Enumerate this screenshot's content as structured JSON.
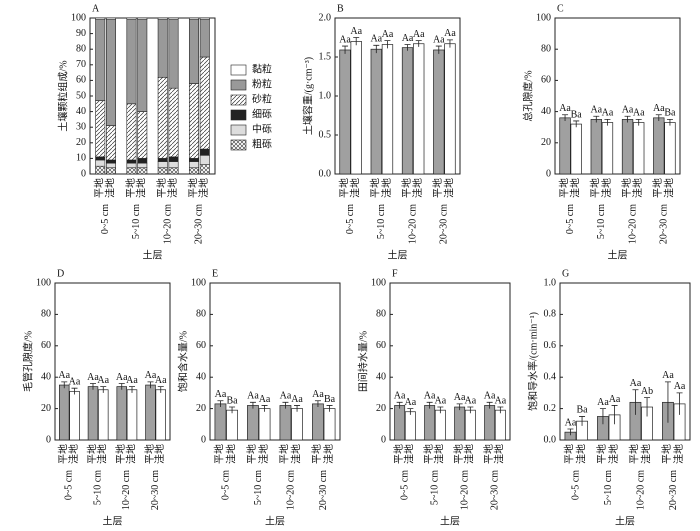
{
  "chart_data": [
    {
      "type": "stacked_bar",
      "panel": "A",
      "ylabel": "土壤颗粒组成/%",
      "xlabel": "土层",
      "categories": [
        "平地",
        "洼地",
        "平地",
        "洼地",
        "平地",
        "洼地",
        "平地",
        "洼地"
      ],
      "groups": [
        "0~5 cm",
        "5~10 cm",
        "10~20 cm",
        "20~30 cm"
      ],
      "ylim": [
        0,
        100
      ],
      "yticks": [
        0,
        10,
        20,
        30,
        40,
        50,
        60,
        70,
        80,
        90,
        100
      ],
      "series": [
        {
          "name": "粗砾",
          "color": "#ffffff",
          "hatch": "cross",
          "values": [
            5,
            4,
            4,
            4,
            4,
            4,
            4,
            6
          ]
        },
        {
          "name": "中砾",
          "color": "#dddddd",
          "values": [
            4,
            3,
            3,
            3,
            4,
            4,
            4,
            6
          ]
        },
        {
          "name": "细砾",
          "color": "#222222",
          "values": [
            2,
            2,
            2,
            3,
            2,
            3,
            2,
            4
          ]
        },
        {
          "name": "砂粒",
          "color": "#ffffff",
          "hatch": "diagonal",
          "values": [
            36,
            22,
            36,
            30,
            52,
            44,
            48,
            59
          ]
        },
        {
          "name": "粉粒",
          "color": "#999999",
          "values": [
            52,
            68,
            54,
            59,
            37,
            44,
            41,
            24
          ]
        },
        {
          "name": "黏粒",
          "color": "#ffffff",
          "values": [
            1,
            1,
            1,
            1,
            1,
            1,
            1,
            1
          ]
        }
      ]
    },
    {
      "type": "bar",
      "panel": "B",
      "ylabel": "土壤容重/(g·cm⁻³)",
      "xlabel": "土层",
      "categories": [
        "0~5 cm",
        "5~10 cm",
        "10~20 cm",
        "20~30 cm"
      ],
      "ylim": [
        0,
        2
      ],
      "yticks": [
        {
          "value": 0,
          "label": "0.0"
        },
        0.5,
        {
          "value": 1,
          "label": "1.0"
        },
        1.5,
        {
          "value": 2,
          "label": "2.0"
        }
      ],
      "series": [
        {
          "name": "平地",
          "color": "#a0a0a0",
          "values": [
            1.59,
            1.6,
            1.62,
            1.59
          ],
          "errors": [
            0.05,
            0.05,
            0.04,
            0.05
          ],
          "letters": [
            "Aa",
            "Aa",
            "Aa",
            "Aa"
          ]
        },
        {
          "name": "洼地",
          "color": "#ffffff",
          "values": [
            1.7,
            1.66,
            1.67,
            1.67
          ],
          "errors": [
            0.05,
            0.05,
            0.04,
            0.05
          ],
          "letters": [
            "Aa",
            "Aa",
            "Aa",
            "Aa"
          ]
        }
      ]
    },
    {
      "type": "bar",
      "panel": "C",
      "ylabel": "总孔隙度/%",
      "xlabel": "土层",
      "categories": [
        "0~5 cm",
        "5~10 cm",
        "10~20 cm",
        "20~30 cm"
      ],
      "ylim": [
        0,
        100
      ],
      "yticks": [
        0,
        20,
        40,
        60,
        80,
        100
      ],
      "series": [
        {
          "name": "平地",
          "color": "#a0a0a0",
          "values": [
            36,
            35,
            35,
            36
          ],
          "errors": [
            2,
            2,
            2,
            2
          ],
          "letters": [
            "Aa",
            "Aa",
            "Aa",
            "Aa"
          ]
        },
        {
          "name": "洼地",
          "color": "#ffffff",
          "values": [
            32,
            33,
            33,
            33
          ],
          "errors": [
            2,
            2,
            2,
            2
          ],
          "letters": [
            "Ba",
            "Aa",
            "Aa",
            "Ba"
          ]
        }
      ]
    },
    {
      "type": "bar",
      "panel": "D",
      "ylabel": "毛管孔隙度/%",
      "xlabel": "土层",
      "categories": [
        "0~5 cm",
        "5~10 cm",
        "10~20 cm",
        "20~30 cm"
      ],
      "ylim": [
        0,
        100
      ],
      "yticks": [
        0,
        20,
        40,
        60,
        80,
        100
      ],
      "series": [
        {
          "name": "平地",
          "color": "#a0a0a0",
          "values": [
            35,
            34,
            34,
            35
          ],
          "errors": [
            2,
            2,
            2,
            2
          ],
          "letters": [
            "Aa",
            "Aa",
            "Aa",
            "Aa"
          ]
        },
        {
          "name": "洼地",
          "color": "#ffffff",
          "values": [
            31,
            32,
            32,
            32
          ],
          "errors": [
            2,
            2,
            2,
            2
          ],
          "letters": [
            "Aa",
            "Aa",
            "Aa",
            "Aa"
          ]
        }
      ]
    },
    {
      "type": "bar",
      "panel": "E",
      "ylabel": "饱和含水量/%",
      "xlabel": "土层",
      "categories": [
        "0~5 cm",
        "5~10 cm",
        "10~20 cm",
        "20~30 cm"
      ],
      "ylim": [
        0,
        100
      ],
      "yticks": [
        0,
        20,
        40,
        60,
        80,
        100
      ],
      "series": [
        {
          "name": "平地",
          "color": "#a0a0a0",
          "values": [
            23,
            22,
            22,
            23
          ],
          "errors": [
            2,
            2,
            2,
            2
          ],
          "letters": [
            "Aa",
            "Aa",
            "Aa",
            "Aa"
          ]
        },
        {
          "name": "洼地",
          "color": "#ffffff",
          "values": [
            19,
            20,
            20,
            20
          ],
          "errors": [
            2,
            2,
            2,
            2
          ],
          "letters": [
            "Ba",
            "Aa",
            "Aa",
            "Ba"
          ]
        }
      ]
    },
    {
      "type": "bar",
      "panel": "F",
      "ylabel": "田间持水量/%",
      "xlabel": "土层",
      "categories": [
        "0~5 cm",
        "5~10 cm",
        "10~20 cm",
        "20~30 cm"
      ],
      "ylim": [
        0,
        100
      ],
      "yticks": [
        0,
        20,
        40,
        60,
        80,
        100
      ],
      "series": [
        {
          "name": "平地",
          "color": "#a0a0a0",
          "values": [
            22,
            22,
            21,
            22
          ],
          "errors": [
            2,
            2,
            2,
            2
          ],
          "letters": [
            "Aa",
            "Aa",
            "Aa",
            "Aa"
          ]
        },
        {
          "name": "洼地",
          "color": "#ffffff",
          "values": [
            18,
            19,
            19,
            19
          ],
          "errors": [
            2,
            2,
            2,
            2
          ],
          "letters": [
            "Aa",
            "Aa",
            "Aa",
            "Aa"
          ]
        }
      ]
    },
    {
      "type": "bar",
      "panel": "G",
      "ylabel": "饱和导水率/(cm·min⁻¹)",
      "xlabel": "土层",
      "categories": [
        "0~5 cm",
        "5~10 cm",
        "10~20 cm",
        "20~30 cm"
      ],
      "ylim": [
        0,
        1
      ],
      "yticks": [
        {
          "value": 0,
          "label": "0.0"
        },
        0.2,
        0.4,
        0.6,
        0.8,
        {
          "value": 1,
          "label": "1.0"
        }
      ],
      "series": [
        {
          "name": "平地",
          "color": "#a0a0a0",
          "values": [
            0.05,
            0.15,
            0.24,
            0.24
          ],
          "errors": [
            0.02,
            0.05,
            0.08,
            0.13
          ],
          "letters": [
            "Aa",
            "Aa",
            "Aa",
            "Aa"
          ]
        },
        {
          "name": "洼地",
          "color": "#ffffff",
          "values": [
            0.12,
            0.16,
            0.21,
            0.23
          ],
          "errors": [
            0.03,
            0.06,
            0.06,
            0.07
          ],
          "letters": [
            "Ba",
            "Aa",
            "Ab",
            "Aa"
          ]
        }
      ]
    }
  ]
}
